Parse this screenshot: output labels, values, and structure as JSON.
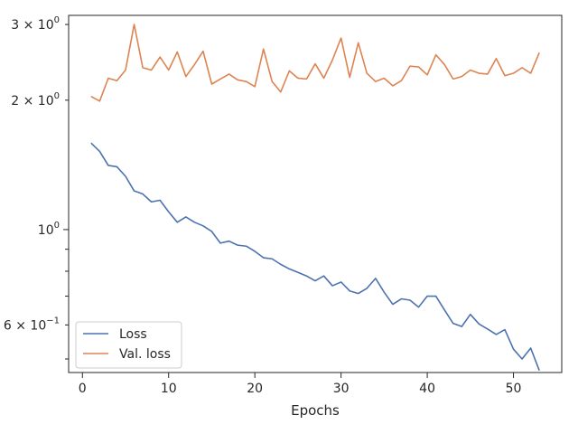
{
  "chart_data": {
    "type": "line",
    "title": "",
    "xlabel": "Epochs",
    "ylabel": "",
    "yscale": "log",
    "xlim": [
      -1.6,
      55.6
    ],
    "ylim": [
      0.465,
      3.15
    ],
    "grid": false,
    "legend_position": "lower-left",
    "x_ticks": [
      {
        "value": 0,
        "label": "0"
      },
      {
        "value": 10,
        "label": "10"
      },
      {
        "value": 20,
        "label": "20"
      },
      {
        "value": 30,
        "label": "30"
      },
      {
        "value": 40,
        "label": "40"
      },
      {
        "value": 50,
        "label": "50"
      }
    ],
    "y_major_ticks": [
      {
        "value": 1,
        "base": "10",
        "exp": "0"
      }
    ],
    "y_minor_ticks": [
      {
        "value": 0.5,
        "label": null
      },
      {
        "value": 0.6,
        "base": "6 × 10",
        "exp": "−1"
      },
      {
        "value": 0.7,
        "label": null
      },
      {
        "value": 0.8,
        "label": null
      },
      {
        "value": 0.9,
        "label": null
      },
      {
        "value": 2,
        "base": "2 × 10",
        "exp": "0"
      },
      {
        "value": 3,
        "base": "3 × 10",
        "exp": "0"
      }
    ],
    "series": [
      {
        "name": "Loss",
        "color": "#4c72b0",
        "x": [
          1,
          2,
          3,
          4,
          5,
          6,
          7,
          8,
          9,
          10,
          11,
          12,
          13,
          14,
          15,
          16,
          17,
          18,
          19,
          20,
          21,
          22,
          23,
          24,
          25,
          26,
          27,
          28,
          29,
          30,
          31,
          32,
          33,
          34,
          35,
          36,
          37,
          38,
          39,
          40,
          41,
          42,
          43,
          44,
          45,
          46,
          47,
          48,
          49,
          50,
          51,
          52,
          53
        ],
        "y": [
          1.59,
          1.52,
          1.41,
          1.4,
          1.33,
          1.23,
          1.21,
          1.16,
          1.17,
          1.1,
          1.04,
          1.07,
          1.04,
          1.02,
          0.99,
          0.93,
          0.94,
          0.92,
          0.915,
          0.89,
          0.86,
          0.855,
          0.83,
          0.81,
          0.795,
          0.78,
          0.76,
          0.78,
          0.74,
          0.755,
          0.72,
          0.71,
          0.73,
          0.77,
          0.715,
          0.67,
          0.69,
          0.685,
          0.66,
          0.7,
          0.7,
          0.65,
          0.605,
          0.595,
          0.635,
          0.603,
          0.587,
          0.57,
          0.585,
          0.527,
          0.5,
          0.53,
          0.47
        ]
      },
      {
        "name": "Val. loss",
        "color": "#dd8452",
        "x": [
          1,
          2,
          3,
          4,
          5,
          6,
          7,
          8,
          9,
          10,
          11,
          12,
          13,
          14,
          15,
          16,
          17,
          18,
          19,
          20,
          21,
          22,
          23,
          24,
          25,
          26,
          27,
          28,
          29,
          30,
          31,
          32,
          33,
          34,
          35,
          36,
          37,
          38,
          39,
          40,
          41,
          42,
          43,
          44,
          45,
          46,
          47,
          48,
          49,
          50,
          51,
          52,
          53
        ],
        "y": [
          2.04,
          1.99,
          2.25,
          2.22,
          2.35,
          3.0,
          2.38,
          2.35,
          2.52,
          2.35,
          2.59,
          2.27,
          2.42,
          2.6,
          2.18,
          2.24,
          2.3,
          2.23,
          2.21,
          2.15,
          2.63,
          2.21,
          2.09,
          2.34,
          2.25,
          2.24,
          2.43,
          2.25,
          2.48,
          2.79,
          2.26,
          2.72,
          2.31,
          2.21,
          2.25,
          2.16,
          2.22,
          2.4,
          2.39,
          2.29,
          2.55,
          2.42,
          2.24,
          2.27,
          2.35,
          2.31,
          2.3,
          2.5,
          2.28,
          2.31,
          2.38,
          2.31,
          2.58
        ]
      }
    ]
  }
}
